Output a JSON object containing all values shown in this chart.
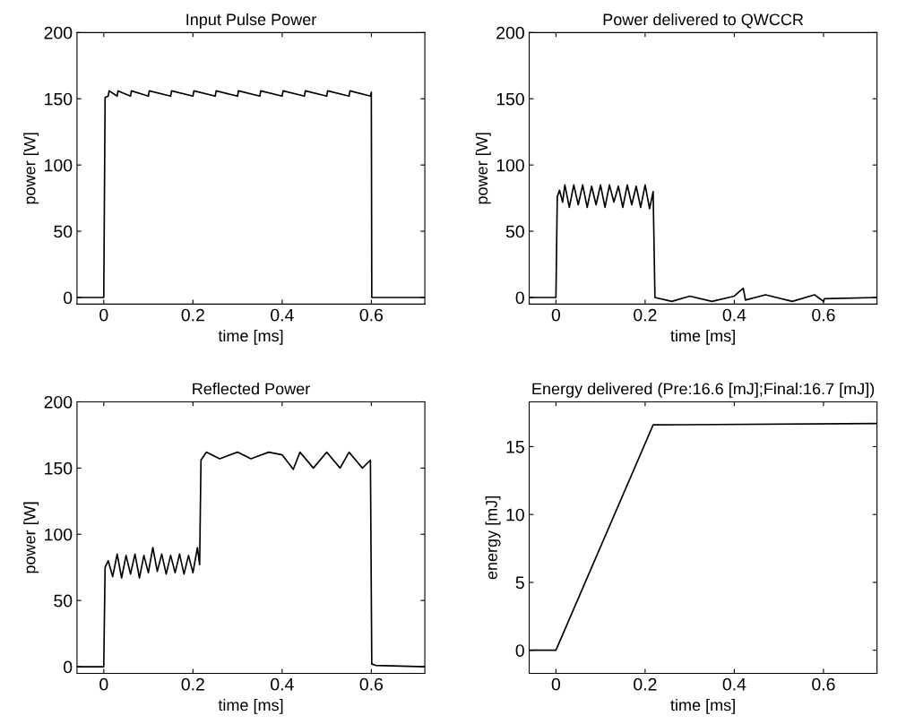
{
  "chart_data": [
    {
      "type": "line",
      "title": "Input Pulse Power",
      "xlabel": "time [ms]",
      "ylabel": "power [W]",
      "xlim": [
        -0.06,
        0.72
      ],
      "ylim": [
        -5,
        200
      ],
      "xticks": [
        0,
        0.2,
        0.4,
        0.6
      ],
      "yticks": [
        0,
        50,
        100,
        150,
        200
      ],
      "grid": false,
      "legend": false,
      "series": [
        {
          "color": "#000000",
          "x": [
            -0.06,
            0,
            0.003,
            0.01,
            0.012,
            0.03,
            0.032,
            0.06,
            0.062,
            0.1,
            0.102,
            0.15,
            0.152,
            0.2,
            0.202,
            0.25,
            0.252,
            0.3,
            0.302,
            0.35,
            0.352,
            0.4,
            0.402,
            0.45,
            0.452,
            0.5,
            0.502,
            0.55,
            0.552,
            0.598,
            0.6,
            0.601,
            0.72
          ],
          "values": [
            0,
            0,
            151,
            152,
            156,
            152,
            156,
            152,
            156,
            152,
            156,
            152,
            156,
            152,
            156,
            152,
            156,
            152,
            156,
            152,
            156,
            152,
            156,
            152,
            156,
            152,
            156,
            152,
            156,
            152,
            155,
            0,
            0
          ]
        }
      ]
    },
    {
      "type": "line",
      "title": "Power delivered to QWCCR",
      "xlabel": "time [ms]",
      "ylabel": "power [W]",
      "xlim": [
        -0.06,
        0.72
      ],
      "ylim": [
        -5,
        200
      ],
      "xticks": [
        0,
        0.2,
        0.4,
        0.6
      ],
      "yticks": [
        0,
        50,
        100,
        150,
        200
      ],
      "grid": false,
      "legend": false,
      "series": [
        {
          "color": "#000000",
          "x": [
            -0.06,
            0,
            0.003,
            0.008,
            0.015,
            0.02,
            0.03,
            0.04,
            0.05,
            0.06,
            0.07,
            0.08,
            0.09,
            0.1,
            0.11,
            0.12,
            0.13,
            0.14,
            0.15,
            0.16,
            0.17,
            0.18,
            0.19,
            0.2,
            0.21,
            0.218,
            0.222,
            0.26,
            0.3,
            0.35,
            0.4,
            0.42,
            0.425,
            0.47,
            0.53,
            0.58,
            0.6,
            0.602,
            0.72
          ],
          "values": [
            0,
            0,
            76,
            81,
            72,
            85,
            68,
            85,
            70,
            85,
            68,
            84,
            70,
            85,
            68,
            85,
            72,
            84,
            68,
            85,
            70,
            84,
            68,
            85,
            67,
            80,
            0,
            -3,
            1,
            -3,
            1,
            7,
            -2,
            2,
            -3,
            2,
            -3,
            -1,
            0
          ]
        }
      ]
    },
    {
      "type": "line",
      "title": "Reflected Power",
      "xlabel": "time [ms]",
      "ylabel": "power [W]",
      "xlim": [
        -0.06,
        0.72
      ],
      "ylim": [
        -5,
        200
      ],
      "xticks": [
        0,
        0.2,
        0.4,
        0.6
      ],
      "yticks": [
        0,
        50,
        100,
        150,
        200
      ],
      "grid": false,
      "legend": false,
      "series": [
        {
          "color": "#000000",
          "x": [
            -0.06,
            0,
            0.003,
            0.01,
            0.02,
            0.03,
            0.04,
            0.05,
            0.06,
            0.07,
            0.08,
            0.09,
            0.1,
            0.11,
            0.12,
            0.13,
            0.14,
            0.15,
            0.16,
            0.17,
            0.18,
            0.19,
            0.2,
            0.21,
            0.215,
            0.218,
            0.23,
            0.26,
            0.3,
            0.33,
            0.37,
            0.4,
            0.425,
            0.44,
            0.47,
            0.5,
            0.53,
            0.55,
            0.58,
            0.598,
            0.601,
            0.61,
            0.72
          ],
          "values": [
            0,
            0,
            75,
            80,
            68,
            85,
            67,
            84,
            70,
            85,
            67,
            84,
            71,
            90,
            72,
            85,
            70,
            84,
            71,
            85,
            70,
            84,
            71,
            90,
            77,
            156,
            162,
            157,
            162,
            157,
            162,
            160,
            149,
            162,
            150,
            162,
            150,
            162,
            150,
            156,
            2,
            1,
            0
          ]
        }
      ]
    },
    {
      "type": "line",
      "title": "Energy delivered (Pre:16.6 [mJ];Final:16.7 [mJ])",
      "xlabel": "time [ms]",
      "ylabel": "energy [mJ]",
      "xlim": [
        -0.06,
        0.72
      ],
      "ylim": [
        -1.7,
        18.3
      ],
      "xticks": [
        0,
        0.2,
        0.4,
        0.6
      ],
      "yticks": [
        0,
        5,
        10,
        15
      ],
      "grid": false,
      "legend": false,
      "series": [
        {
          "color": "#000000",
          "x": [
            -0.06,
            0,
            0.218,
            0.72
          ],
          "values": [
            0,
            0,
            16.6,
            16.7
          ]
        }
      ]
    }
  ]
}
